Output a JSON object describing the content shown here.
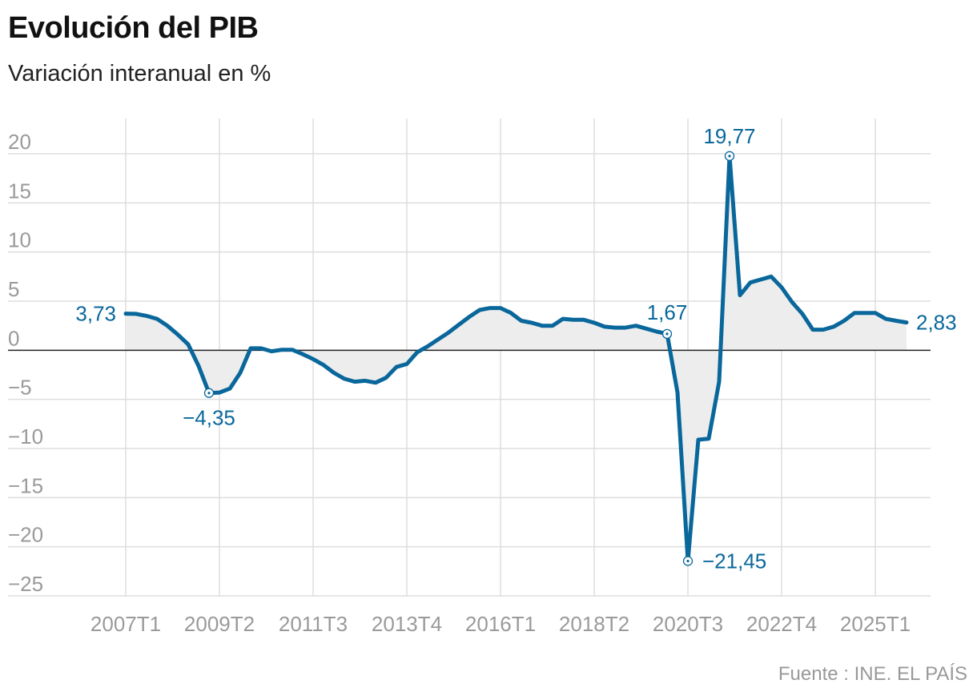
{
  "header": {
    "title": "Evolución del PIB",
    "subtitle": "Variación interanual en %"
  },
  "footer": {
    "source": "Fuente : INE. EL PAÍS"
  },
  "colors": {
    "line": "#09679b",
    "area": "#ededed",
    "grid": "#dddddd",
    "zero_line": "#222222",
    "tick_text": "#9a9a9a"
  },
  "chart_data": {
    "type": "line",
    "title": "Evolución del PIB",
    "subtitle": "Variación interanual en %",
    "xlabel": "",
    "ylabel": "",
    "ylim": [
      -25,
      20
    ],
    "yticks": [
      20,
      15,
      10,
      5,
      0,
      -5,
      -10,
      -15,
      -20,
      -25
    ],
    "ytick_labels": [
      "20",
      "15",
      "10",
      "5",
      "0",
      "−5",
      "−10",
      "−15",
      "−20",
      "−25"
    ],
    "grid": true,
    "xticks": [
      "2007T1",
      "2009T2",
      "2011T3",
      "2013T4",
      "2016T1",
      "2018T2",
      "2020T3",
      "2022T4",
      "2025T1"
    ],
    "x_start": "2007T1",
    "x_end": "2025T3",
    "series": [
      {
        "values": [
          3.73,
          3.7,
          3.5,
          3.2,
          2.5,
          1.6,
          0.6,
          -1.6,
          -4.35,
          -4.3,
          -3.9,
          -2.3,
          0.2,
          0.2,
          -0.1,
          0.05,
          0.05,
          -0.4,
          -0.9,
          -1.5,
          -2.3,
          -2.9,
          -3.2,
          -3.1,
          -3.3,
          -2.8,
          -1.7,
          -1.4,
          -0.2,
          0.4,
          1.1,
          1.8,
          2.6,
          3.4,
          4.1,
          4.3,
          4.3,
          3.8,
          3.0,
          2.8,
          2.5,
          2.5,
          3.2,
          3.1,
          3.1,
          2.8,
          2.4,
          2.3,
          2.3,
          2.5,
          2.2,
          1.9,
          1.67,
          -4.3,
          -21.45,
          -9.1,
          -9.0,
          -3.2,
          19.77,
          5.6,
          6.9,
          7.2,
          7.5,
          6.4,
          4.9,
          3.7,
          2.1,
          2.1,
          2.4,
          3.0,
          3.8,
          3.8,
          3.8,
          3.2,
          3.0,
          2.83
        ]
      }
    ],
    "annotations": [
      {
        "label": "3,73",
        "index": 0,
        "value": 3.73
      },
      {
        "label": "−4,35",
        "index": 8,
        "value": -4.35
      },
      {
        "label": "1,67",
        "index": 52,
        "value": 1.67
      },
      {
        "label": "−21,45",
        "index": 54,
        "value": -21.45
      },
      {
        "label": "19,77",
        "index": 58,
        "value": 19.77
      },
      {
        "label": "2,83",
        "index": 75,
        "value": 2.83
      }
    ]
  }
}
